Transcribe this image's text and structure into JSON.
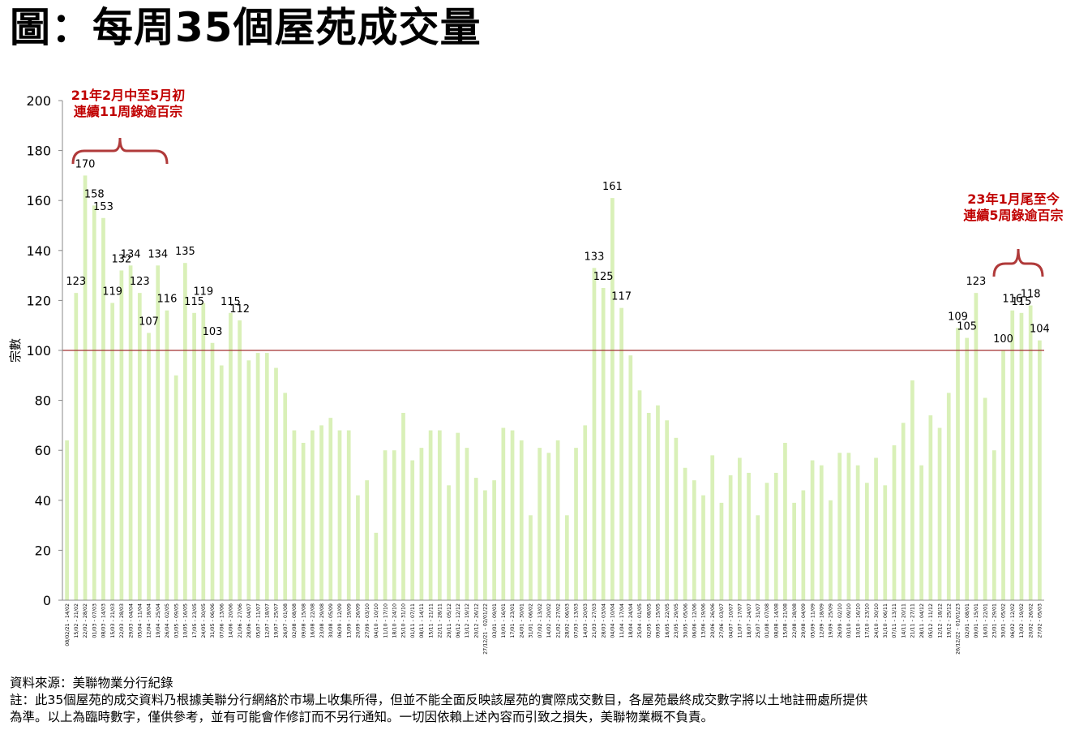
{
  "title": "圖：每周35個屋苑成交量",
  "annotations": [
    {
      "line1": "21年2月中至5月初",
      "line2": "連續11周錄逾百宗"
    },
    {
      "line1": "23年1月尾至今",
      "line2": "連續5周錄逾百宗"
    }
  ],
  "footnotes": {
    "source": "資料來源：美聯物業分行紀錄",
    "note_line1": "註：此35個屋苑的成交資料乃根據美聯分行網絡於市場上收集所得，但並不能全面反映該屋苑的實際成交數目，各屋苑最終成交數字將以土地註冊處所提供",
    "note_line2": "為準。以上為臨時數字，僅供參考，並有可能會作修訂而不另行通知。一切因依賴上述內容而引致之損失，美聯物業概不負責。"
  },
  "colors": {
    "bar": "#d9f0b8",
    "reference_line": "#a33030",
    "annotation": "#c00000",
    "axis": "#888888"
  },
  "chart_data": {
    "type": "bar",
    "title": "每周35個屋苑成交量",
    "ylabel": "宗數",
    "xlabel": "",
    "ylim": [
      0,
      200
    ],
    "yticks": [
      0,
      20,
      40,
      60,
      80,
      100,
      120,
      140,
      160,
      180,
      200
    ],
    "reference_line": 100,
    "grid": false,
    "categories": [
      "08/02/21 - 14/02",
      "15/02 - 21/02",
      "22/02 - 28/02",
      "01/03 - 07/03",
      "08/03 - 14/03",
      "15/03 - 21/03",
      "22/03 - 28/03",
      "29/03 - 04/04",
      "05/04 - 11/04",
      "12/04 - 18/04",
      "19/04 - 25/04",
      "26/04 - 02/05",
      "03/05 - 09/05",
      "10/05 - 16/05",
      "17/05 - 23/05",
      "24/05 - 30/05",
      "31/05 - 06/06",
      "07/06 - 13/06",
      "14/06 - 20/06",
      "21/06 - 27/06",
      "28/06 - 04/07",
      "05/07 - 11/07",
      "12/07 - 18/07",
      "19/07 - 25/07",
      "26/07 - 01/08",
      "02/08 - 08/08",
      "09/08 - 15/08",
      "16/08 - 22/08",
      "23/08 - 29/08",
      "30/08 - 05/09",
      "06/09 - 12/09",
      "13/09 - 19/09",
      "20/09 - 26/09",
      "27/09 - 03/10",
      "04/10 - 10/10",
      "11/10 - 17/10",
      "18/10 - 24/10",
      "25/10 - 31/10",
      "01/11 - 07/11",
      "08/11 - 14/11",
      "15/11 - 21/11",
      "22/11 - 28/11",
      "29/11 - 05/12",
      "06/12 - 12/12",
      "13/12 - 19/12",
      "20/12 - 26/12",
      "27/12/21 - 02/01/22",
      "03/01 - 09/01",
      "10/01 - 16/01",
      "17/01 - 23/01",
      "24/01 - 30/01",
      "31/01 - 06/02",
      "07/02 - 13/02",
      "14/02 - 20/02",
      "21/02 - 27/02",
      "28/02 - 06/03",
      "07/03 - 13/03",
      "14/03 - 20/03",
      "21/03 - 27/03",
      "28/03 - 03/04",
      "04/04 - 10/04",
      "11/04 - 17/04",
      "18/04 - 24/04",
      "25/04 - 01/05",
      "02/05 - 08/05",
      "09/05 - 15/05",
      "16/05 - 22/05",
      "23/05 - 29/05",
      "30/05 - 05/06",
      "06/06 - 12/06",
      "13/06 - 19/06",
      "20/06 - 26/06",
      "27/06 - 03/07",
      "04/07 - 10/07",
      "11/07 - 17/07",
      "18/07 - 24/07",
      "25/07 - 31/07",
      "01/08 - 07/08",
      "08/08 - 14/08",
      "15/08 - 21/08",
      "22/08 - 28/08",
      "29/08 - 04/09",
      "05/09 - 11/09",
      "12/09 - 18/09",
      "19/09 - 25/09",
      "26/09 - 02/10",
      "03/10 - 09/10",
      "10/10 - 16/10",
      "17/10 - 23/10",
      "24/10 - 30/10",
      "31/10 - 06/11",
      "07/11 - 13/11",
      "14/11 - 20/11",
      "21/11 - 27/11",
      "28/11 - 04/12",
      "05/12 - 11/12",
      "12/12 - 18/12",
      "19/12 - 25/12",
      "26/12/22 - 01/01/23",
      "02/01 - 08/01",
      "09/01 - 15/01",
      "16/01 - 22/01",
      "23/01 - 29/01",
      "30/01 - 05/02",
      "06/02 - 12/02",
      "13/02 - 19/02",
      "20/02 - 26/02",
      "27/02 - 05/03"
    ],
    "values": [
      64,
      123,
      170,
      158,
      153,
      119,
      132,
      134,
      123,
      107,
      134,
      116,
      90,
      135,
      115,
      119,
      103,
      94,
      115,
      112,
      96,
      99,
      99,
      93,
      83,
      68,
      63,
      68,
      70,
      73,
      68,
      68,
      42,
      48,
      27,
      60,
      60,
      75,
      56,
      61,
      68,
      68,
      46,
      67,
      61,
      49,
      44,
      48,
      69,
      68,
      64,
      34,
      61,
      59,
      64,
      34,
      61,
      70,
      133,
      125,
      161,
      117,
      98,
      84,
      75,
      78,
      72,
      65,
      53,
      48,
      42,
      58,
      39,
      50,
      57,
      51,
      34,
      47,
      51,
      63,
      39,
      44,
      56,
      54,
      40,
      59,
      59,
      54,
      47,
      57,
      46,
      62,
      71,
      88,
      54,
      74,
      69,
      83,
      109,
      105,
      123,
      81,
      60,
      100,
      116,
      115,
      118,
      104
    ],
    "data_labels": [
      {
        "index": 1,
        "value": 123
      },
      {
        "index": 2,
        "value": 170
      },
      {
        "index": 3,
        "value": 158
      },
      {
        "index": 4,
        "value": 153
      },
      {
        "index": 5,
        "value": 119
      },
      {
        "index": 6,
        "value": 132
      },
      {
        "index": 7,
        "value": 134
      },
      {
        "index": 8,
        "value": 123
      },
      {
        "index": 9,
        "value": 107
      },
      {
        "index": 10,
        "value": 134
      },
      {
        "index": 11,
        "value": 116
      },
      {
        "index": 13,
        "value": 135
      },
      {
        "index": 14,
        "value": 115
      },
      {
        "index": 15,
        "value": 119
      },
      {
        "index": 16,
        "value": 103
      },
      {
        "index": 18,
        "value": 115
      },
      {
        "index": 19,
        "value": 112
      },
      {
        "index": 58,
        "value": 133
      },
      {
        "index": 59,
        "value": 125
      },
      {
        "index": 60,
        "value": 161
      },
      {
        "index": 61,
        "value": 117
      },
      {
        "index": 98,
        "value": 109
      },
      {
        "index": 99,
        "value": 105
      },
      {
        "index": 100,
        "value": 123
      },
      {
        "index": 103,
        "value": 100
      },
      {
        "index": 104,
        "value": 116
      },
      {
        "index": 105,
        "value": 115
      },
      {
        "index": 106,
        "value": 118
      },
      {
        "index": 107,
        "value": 104
      }
    ]
  }
}
